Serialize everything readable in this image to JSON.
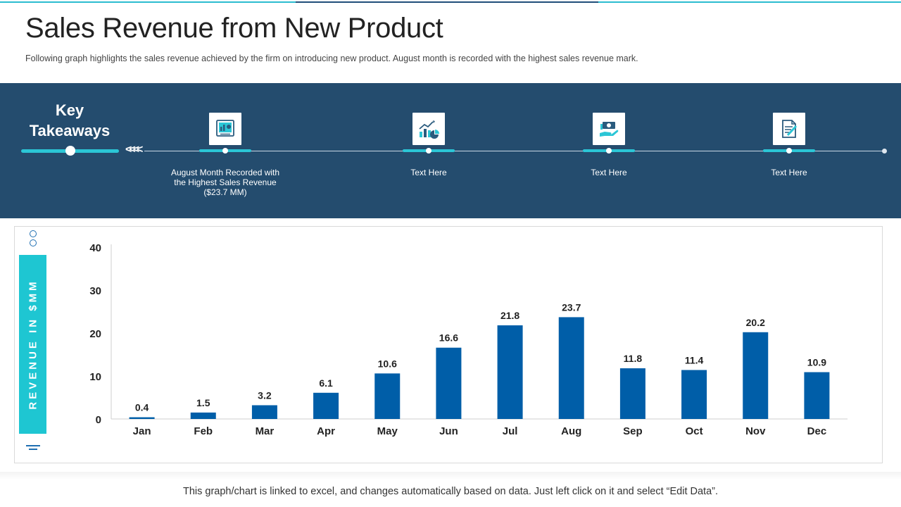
{
  "header": {
    "title": "Sales Revenue from New Product",
    "subtitle": "Following graph highlights the sales revenue  achieved  by the firm on introducing new product. August month is recorded with the highest sales revenue  mark."
  },
  "takeaways": {
    "heading": "Key Takeaways",
    "chevrons": "<<<<",
    "items": [
      {
        "icon": "presentation-chart-icon",
        "text": "August Month Recorded with the Highest Sales Revenue ($23.7 MM)"
      },
      {
        "icon": "growth-chart-icon",
        "text": "Text Here"
      },
      {
        "icon": "money-hand-icon",
        "text": "Text Here"
      },
      {
        "icon": "document-edit-icon",
        "text": "Text Here"
      }
    ]
  },
  "colors": {
    "band": "#244c6e",
    "accent": "#2bc6d6",
    "bar": "#005ea8"
  },
  "chart_data": {
    "type": "bar",
    "title": "",
    "xlabel": "",
    "ylabel": "REVENUE IN $MM",
    "categories": [
      "Jan",
      "Feb",
      "Mar",
      "Apr",
      "May",
      "Jun",
      "Jul",
      "Aug",
      "Sep",
      "Oct",
      "Nov",
      "Dec"
    ],
    "values": [
      0.4,
      1.5,
      3.2,
      6.1,
      10.6,
      16.6,
      21.8,
      23.7,
      11.8,
      11.4,
      20.2,
      10.9
    ],
    "value_labels": [
      "0.4",
      "1.5",
      "3.2",
      "6.1",
      "10.6",
      "16.6",
      "21.8",
      "23.7",
      "11.8",
      "11.4",
      "20.2",
      "10.9"
    ],
    "yticks": [
      0,
      10,
      20,
      30,
      40
    ],
    "ylim": [
      0,
      40
    ],
    "grid": false,
    "legend": "none"
  },
  "footer": {
    "note": "This graph/chart is linked to excel, and changes automatically based on data. Just left click on it and select “Edit Data”."
  }
}
